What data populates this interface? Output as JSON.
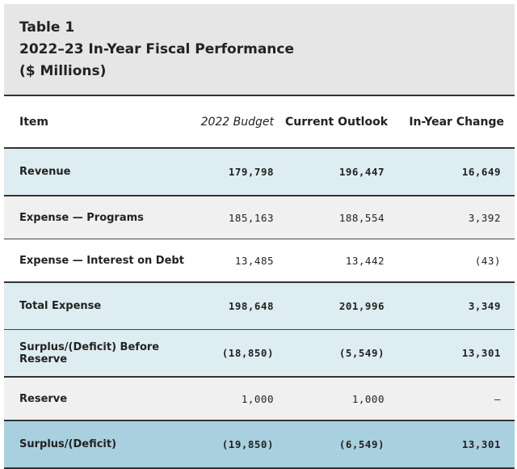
{
  "table": {
    "caption": "Table 1",
    "title_line1": "2022–23 In-Year Fiscal Performance",
    "title_line2": "($ Millions)",
    "headers": [
      "Item",
      "2022 Budget",
      "Current Outlook",
      "In-Year Change"
    ],
    "rows": [
      {
        "item": "Revenue",
        "budget": "179,798",
        "outlook": "196,447",
        "change": "16,649"
      },
      {
        "item": "Expense — Programs",
        "budget": "185,163",
        "outlook": "188,554",
        "change": "3,392"
      },
      {
        "item": "Expense — Interest on Debt",
        "budget": "13,485",
        "outlook": "13,442",
        "change": "(43)"
      },
      {
        "item": "Total Expense",
        "budget": "198,648",
        "outlook": "201,996",
        "change": "3,349"
      },
      {
        "item": "Surplus/(Deficit) Before Reserve",
        "budget": "(18,850)",
        "outlook": "(5,549)",
        "change": "13,301"
      },
      {
        "item": "Reserve",
        "budget": "1,000",
        "outlook": "1,000",
        "change": "–"
      },
      {
        "item": "Surplus/(Deficit)",
        "budget": "(19,850)",
        "outlook": "(6,549)",
        "change": "13,301"
      }
    ]
  }
}
